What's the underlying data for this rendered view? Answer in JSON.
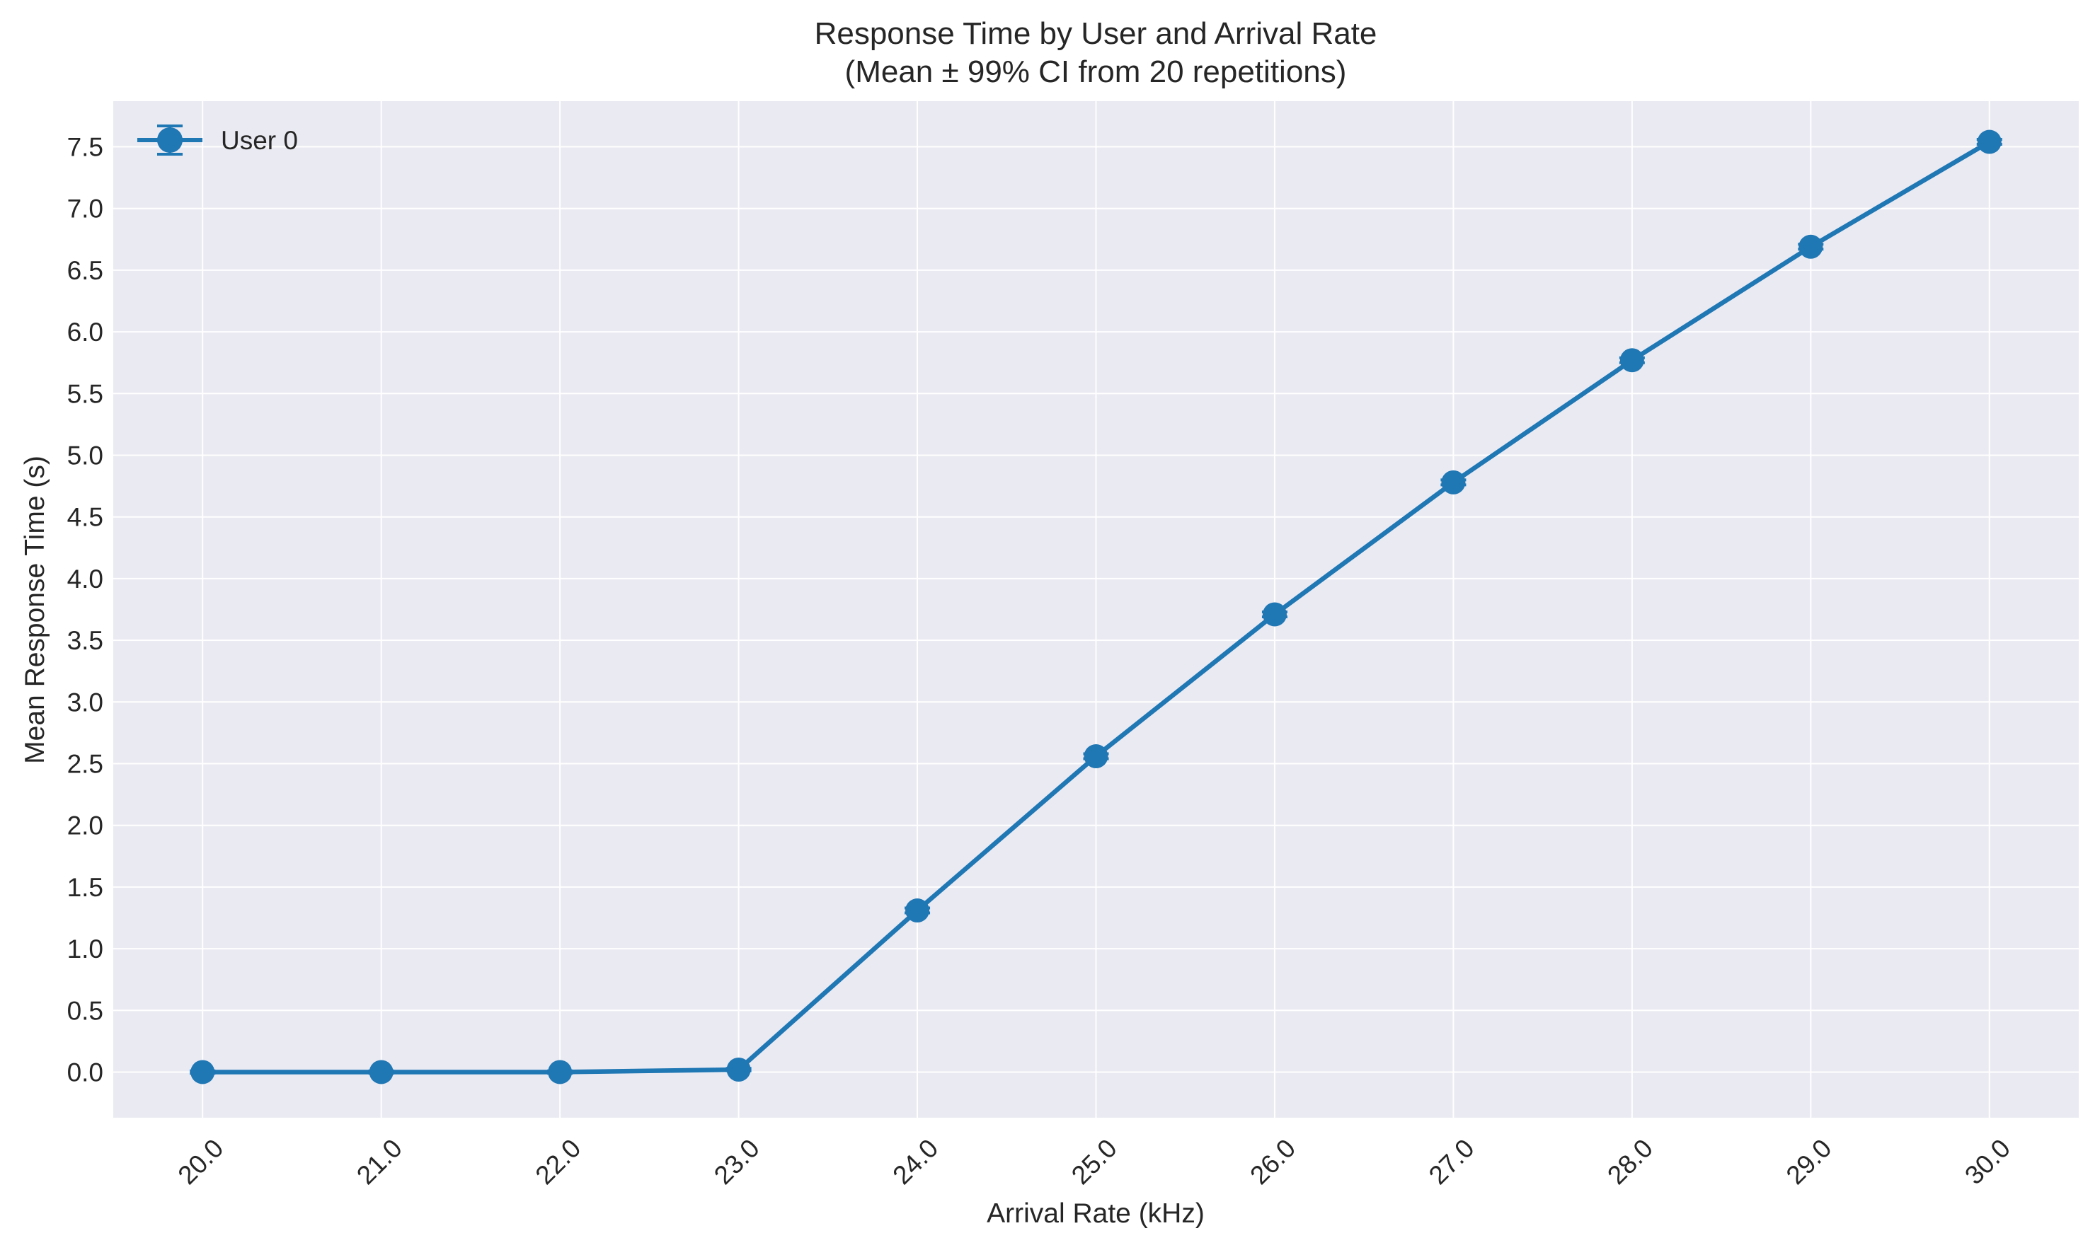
{
  "chart_data": {
    "type": "line",
    "title": "Response Time by User and Arrival Rate",
    "subtitle": "(Mean ± 99% CI from 20 repetitions)",
    "xlabel": "Arrival Rate (kHz)",
    "ylabel": "Mean Response Time (s)",
    "x": [
      20.0,
      21.0,
      22.0,
      23.0,
      24.0,
      25.0,
      26.0,
      27.0,
      28.0,
      29.0,
      30.0
    ],
    "x_tick_labels": [
      "20.0",
      "21.0",
      "22.0",
      "23.0",
      "24.0",
      "25.0",
      "26.0",
      "27.0",
      "28.0",
      "29.0",
      "30.0"
    ],
    "y_ticks": [
      0.0,
      0.5,
      1.0,
      1.5,
      2.0,
      2.5,
      3.0,
      3.5,
      4.0,
      4.5,
      5.0,
      5.5,
      6.0,
      6.5,
      7.0,
      7.5
    ],
    "y_tick_labels": [
      "0.0",
      "0.5",
      "1.0",
      "1.5",
      "2.0",
      "2.5",
      "3.0",
      "3.5",
      "4.0",
      "4.5",
      "5.0",
      "5.5",
      "6.0",
      "6.5",
      "7.0",
      "7.5"
    ],
    "xlim": [
      19.5,
      30.5
    ],
    "ylim": [
      -0.37,
      7.87
    ],
    "grid": true,
    "legend_position": "top-left",
    "error_bars": "99% CI",
    "series": [
      {
        "name": "User 0",
        "color": "#1f77b4",
        "marker": "circle",
        "values": [
          0.0,
          0.0,
          0.0,
          0.02,
          1.31,
          2.56,
          3.71,
          4.78,
          5.77,
          6.69,
          7.54
        ],
        "ci": [
          0.01,
          0.01,
          0.01,
          0.01,
          0.02,
          0.02,
          0.02,
          0.02,
          0.02,
          0.02,
          0.02
        ]
      }
    ]
  },
  "colors": {
    "plot_background": "#eaeaf2",
    "grid": "#ffffff",
    "text": "#262626",
    "series_accent": "#1f77b4"
  }
}
